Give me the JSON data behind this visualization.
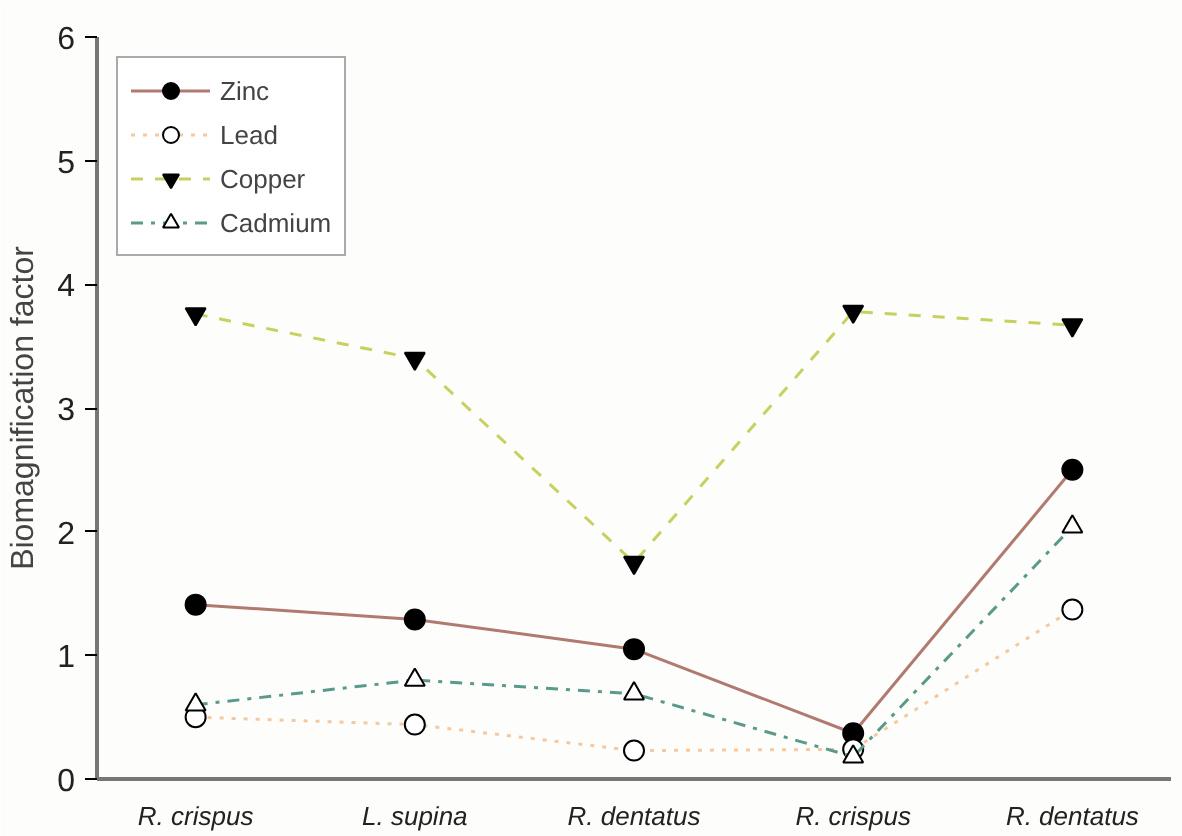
{
  "chart_data": {
    "type": "line",
    "ylabel": "Biomagnification factor",
    "categories": [
      "R. crispus",
      "L. supina",
      "R. dentatus",
      "R. crispus",
      "R. dentatus"
    ],
    "series": [
      {
        "name": "Zinc",
        "color": "#b07a70",
        "marker": "circle",
        "line_style": "solid",
        "values": [
          1.41,
          1.29,
          1.05,
          0.37,
          2.5
        ]
      },
      {
        "name": "Lead",
        "color": "#f5c9a0",
        "marker": "circle",
        "line_style": "dotted",
        "values": [
          0.5,
          0.44,
          0.23,
          0.24,
          1.37
        ]
      },
      {
        "name": "Copper",
        "color": "#c8d060",
        "marker": "triangle",
        "line_style": "dashed",
        "values": [
          3.76,
          3.4,
          1.75,
          3.78,
          3.67
        ]
      },
      {
        "name": "Cadmium",
        "color": "#5a9a8a",
        "marker": "triangle",
        "line_style": "dashdot",
        "values": [
          0.6,
          0.8,
          0.69,
          0.18,
          2.04
        ]
      }
    ],
    "ylim": [
      0,
      6
    ],
    "yticks": [
      0,
      1,
      2,
      3,
      4,
      5,
      6
    ],
    "grid": false,
    "legend": "top left"
  }
}
